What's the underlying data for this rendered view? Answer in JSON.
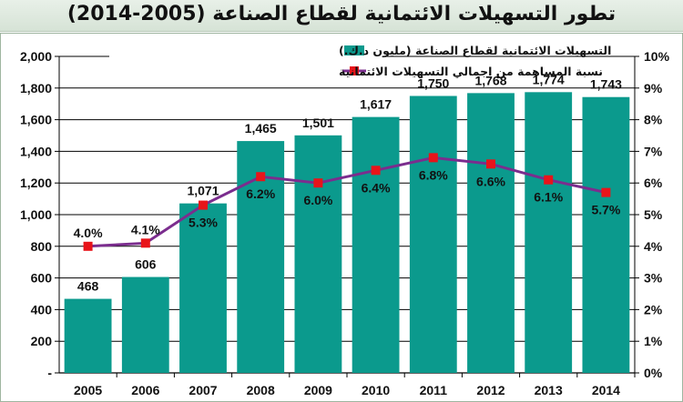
{
  "title": "تطور التسهيلات الائتمانية لقطاع الصناعة (2005-2014)",
  "colors": {
    "bar": "#0b9a8d",
    "line": "#7b2d8e",
    "marker": "#e8141a",
    "grid": "#000000"
  },
  "chart_data": {
    "type": "bar",
    "title": "تطور التسهيلات الائتمانية لقطاع الصناعة (2005-2014)",
    "categories": [
      "2005",
      "2006",
      "2007",
      "2008",
      "2009",
      "2010",
      "2011",
      "2012",
      "2013",
      "2014"
    ],
    "series": [
      {
        "name": "التسهيلات الائتمانية لقطاع الصناعة (مليون د.ك.)",
        "type": "bar",
        "axis": "left",
        "values": [
          468,
          606,
          1071,
          1465,
          1501,
          1617,
          1750,
          1768,
          1774,
          1743
        ],
        "labels": [
          "468",
          "606",
          "1,071",
          "1,465",
          "1,501",
          "1,617",
          "1,750",
          "1,768",
          "1,774",
          "1,743"
        ]
      },
      {
        "name": "نسبة المساهمة من اجمالي التسهيلات الائتمانية",
        "type": "line",
        "axis": "right",
        "values": [
          4.0,
          4.1,
          5.3,
          6.2,
          6.0,
          6.4,
          6.8,
          6.6,
          6.1,
          5.7
        ],
        "labels": [
          "4.0%",
          "4.1%",
          "5.3%",
          "6.2%",
          "6.0%",
          "6.4%",
          "6.8%",
          "6.6%",
          "6.1%",
          "5.7%"
        ]
      }
    ],
    "y_left": {
      "ylim": [
        0,
        2000
      ],
      "ticks": [
        0,
        200,
        400,
        600,
        800,
        1000,
        1200,
        1400,
        1600,
        1800,
        2000
      ],
      "tick_labels": [
        "-",
        "200",
        "400",
        "600",
        "800",
        "1,000",
        "1,200",
        "1,400",
        "1,600",
        "1,800",
        "2,000"
      ]
    },
    "y_right": {
      "ylim": [
        0,
        10
      ],
      "ticks": [
        0,
        1,
        2,
        3,
        4,
        5,
        6,
        7,
        8,
        9,
        10
      ],
      "tick_labels": [
        "0%",
        "1%",
        "2%",
        "3%",
        "4%",
        "5%",
        "6%",
        "7%",
        "8%",
        "9%",
        "10%"
      ]
    },
    "grid": "horizontal",
    "legend_position": "top-center"
  }
}
